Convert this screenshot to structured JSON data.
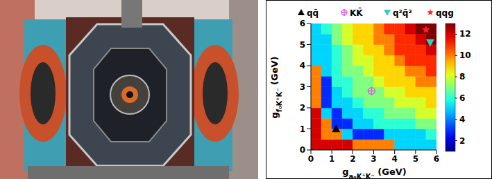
{
  "chart_data": {
    "type": "heatmap",
    "xlabel": {
      "symbol": "g",
      "subscript": "a₀K⁺K⁻",
      "unit": "(GeV)"
    },
    "ylabel": {
      "symbol": "g",
      "subscript": "f₀K⁺K⁻",
      "unit": "(GeV)"
    },
    "xlim": [
      0,
      6
    ],
    "ylim": [
      0,
      6
    ],
    "xticks": [
      0,
      1,
      2,
      3,
      4,
      5,
      6
    ],
    "yticks": [
      0,
      1,
      2,
      3,
      4,
      5,
      6
    ],
    "grid": false,
    "legend": "top",
    "cells": {
      "x_edges": [
        0,
        0.5,
        1,
        1.5,
        2,
        2.5,
        3,
        3.5,
        4,
        4.5,
        5,
        5.5,
        6
      ],
      "y_edges": [
        0,
        0.5,
        1,
        1.5,
        2,
        2.5,
        3,
        3.5,
        4,
        4.5,
        5,
        5.5,
        6
      ],
      "values": [
        [
          12,
          12,
          12,
          12,
          10,
          10,
          10,
          10,
          5,
          5,
          5,
          5
        ],
        [
          12,
          10,
          10,
          5,
          3,
          3,
          3,
          5,
          5,
          5,
          5,
          6
        ],
        [
          12,
          10,
          3,
          3,
          5,
          5,
          6,
          6,
          6,
          6,
          7,
          7
        ],
        [
          12,
          5,
          3,
          5,
          5,
          6,
          6,
          7,
          7,
          7,
          8,
          8
        ],
        [
          10,
          3,
          5,
          5,
          6,
          7,
          7,
          7,
          8,
          8,
          8,
          9
        ],
        [
          10,
          3,
          5,
          6,
          7,
          7,
          7,
          8,
          8,
          9,
          9,
          9
        ],
        [
          10,
          3,
          6,
          6,
          7,
          7,
          8,
          9,
          9,
          9,
          10,
          10
        ],
        [
          10,
          5,
          6,
          7,
          7,
          8,
          9,
          9,
          9,
          10,
          10,
          11
        ],
        [
          5,
          5,
          6,
          7,
          8,
          8,
          9,
          9,
          10,
          11,
          11,
          11
        ],
        [
          5,
          5,
          6,
          7,
          8,
          9,
          9,
          10,
          11,
          11,
          11,
          12
        ],
        [
          5,
          5,
          7,
          8,
          9,
          9,
          10,
          10,
          11,
          11,
          12,
          13
        ],
        [
          5,
          6,
          7,
          8,
          9,
          9,
          10,
          11,
          11,
          12,
          13,
          13
        ]
      ]
    },
    "colorbar": {
      "range": [
        1,
        13
      ],
      "ticks": [
        2,
        4,
        6,
        8,
        10,
        12
      ]
    },
    "series": [
      {
        "name": "qq̄",
        "color": "#000000",
        "marker": "triangle-up",
        "x": [
          1.2
        ],
        "y": [
          1.0
        ]
      },
      {
        "name": "KK̄",
        "color": "#e060e0",
        "marker": "circle-plus",
        "x": [
          2.9
        ],
        "y": [
          2.8
        ]
      },
      {
        "name": "q²q̄²",
        "color": "#30d0c0",
        "marker": "triangle-down",
        "x": [
          5.7
        ],
        "y": [
          5.1
        ]
      },
      {
        "name": "qqg",
        "color": "#ff2020",
        "marker": "star",
        "x": [
          5.5
        ],
        "y": [
          5.7
        ]
      }
    ]
  }
}
